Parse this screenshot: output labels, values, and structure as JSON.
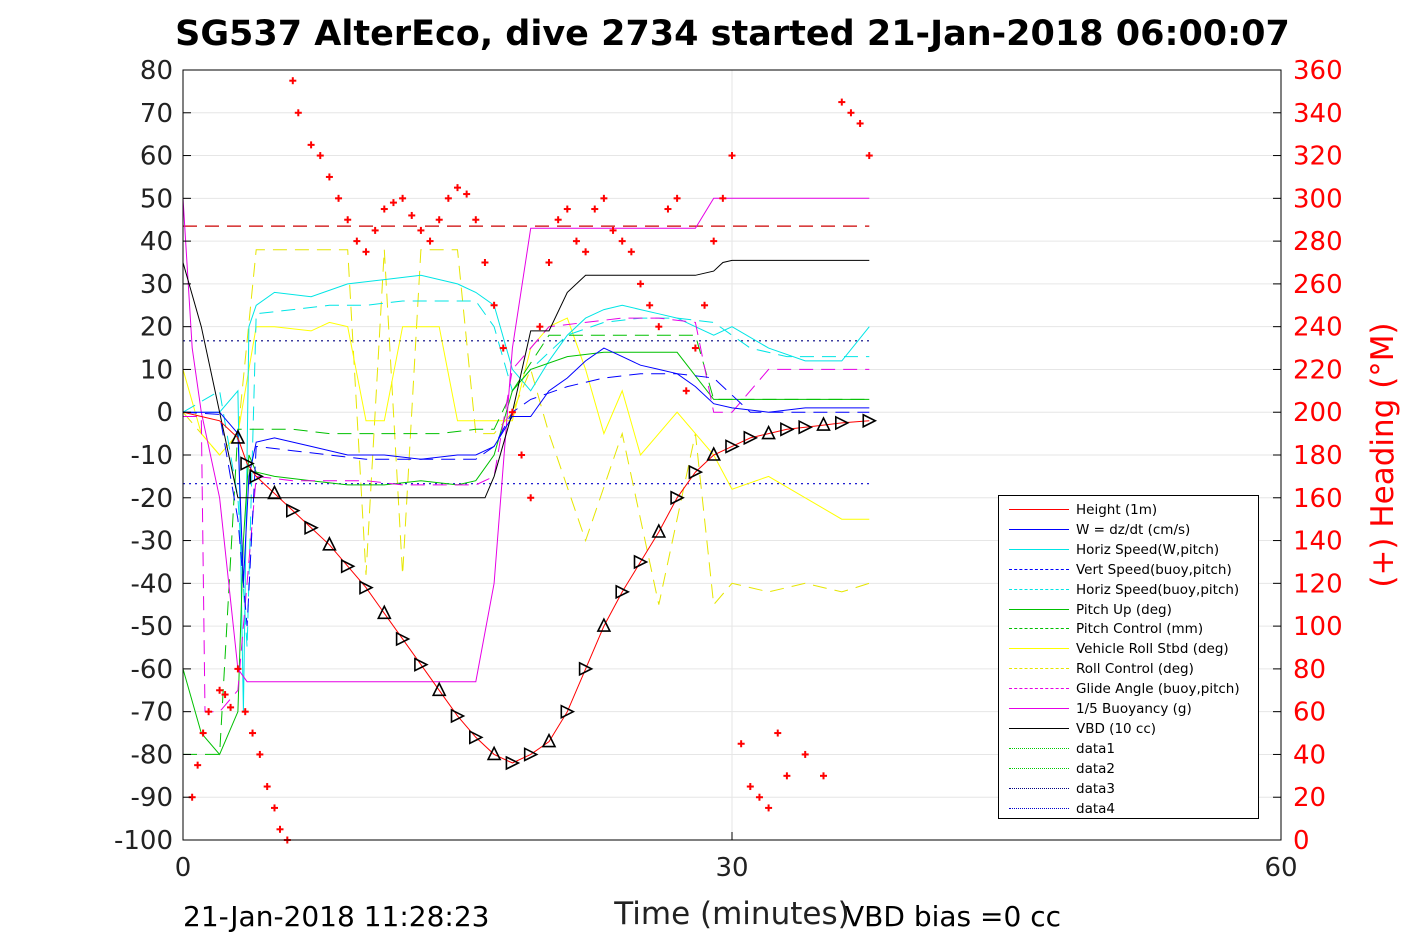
{
  "title": "SG537 AlterEco, dive 2734 started 21-Jan-2018 06:00:07",
  "footer": {
    "timestamp": "21-Jan-2018 11:28:23",
    "vbd_bias": "VBD bias =0 cc"
  },
  "chart_data": {
    "type": "line",
    "xlabel": "Time (minutes)",
    "ylabel_right": "(+) Heading (°M)",
    "xlim": [
      0,
      60
    ],
    "ylim_left": [
      -100,
      80
    ],
    "ylim_right": [
      0,
      360
    ],
    "xticks": [
      0,
      30,
      60
    ],
    "yticks_left": [
      80,
      70,
      60,
      50,
      40,
      30,
      20,
      10,
      0,
      -10,
      -20,
      -30,
      -40,
      -50,
      -60,
      -70,
      -80,
      -90,
      -100
    ],
    "yticks_right": [
      360,
      340,
      320,
      300,
      280,
      260,
      240,
      220,
      200,
      180,
      160,
      140,
      120,
      100,
      80,
      60,
      40,
      20,
      0
    ],
    "grid": true,
    "legend_position": "bottom-right",
    "colors": {
      "height": "#ff0000",
      "w": "#0000ff",
      "horiz_w": "#00e5e5",
      "vert_buoy": "#0000ff",
      "horiz_buoy": "#00e5e5",
      "pitch": "#00c000",
      "pitch_ctrl": "#00c000",
      "roll": "#ffff00",
      "roll_ctrl": "#e6e600",
      "glide": "#e600e6",
      "buoyancy": "#e600e6",
      "vbd": "#000000",
      "data1": "#00cc00",
      "data2": "#00cc00",
      "data3": "#000080",
      "data4": "#0000cc",
      "heading": "#ff0000"
    },
    "legend": [
      {
        "label": "Height (1m)",
        "color": "#ff0000",
        "style": "solid"
      },
      {
        "label": "W = dz/dt (cm/s)",
        "color": "#0000ff",
        "style": "solid"
      },
      {
        "label": "Horiz Speed(W,pitch)",
        "color": "#00e5e5",
        "style": "solid"
      },
      {
        "label": "Vert Speed(buoy,pitch)",
        "color": "#0000ff",
        "style": "dashed"
      },
      {
        "label": "Horiz Speed(buoy,pitch)",
        "color": "#00e5e5",
        "style": "dashed"
      },
      {
        "label": "Pitch Up (deg)",
        "color": "#00c000",
        "style": "solid"
      },
      {
        "label": "Pitch Control (mm)",
        "color": "#00c000",
        "style": "dashed"
      },
      {
        "label": "Vehicle Roll Stbd (deg)",
        "color": "#ffff00",
        "style": "solid"
      },
      {
        "label": "Roll Control (deg)",
        "color": "#e6e600",
        "style": "dashed"
      },
      {
        "label": "Glide Angle (buoy,pitch)",
        "color": "#e600e6",
        "style": "dashed"
      },
      {
        "label": "1/5 Buoyancy (g)",
        "color": "#e600e6",
        "style": "solid"
      },
      {
        "label": "VBD (10 cc)",
        "color": "#000000",
        "style": "solid"
      },
      {
        "label": "data1",
        "color": "#00cc00",
        "style": "dotted"
      },
      {
        "label": "data2",
        "color": "#00cc00",
        "style": "dotted"
      },
      {
        "label": "data3",
        "color": "#000080",
        "style": "dotted"
      },
      {
        "label": "data4",
        "color": "#0000cc",
        "style": "dotted"
      }
    ],
    "series": {
      "height": {
        "x": [
          0,
          1,
          2,
          3,
          3.5,
          4,
          5,
          6,
          7,
          8,
          9,
          10,
          11,
          12,
          13,
          14,
          15,
          16,
          17,
          18,
          19,
          20,
          21,
          22,
          23,
          24,
          25,
          26,
          27,
          28,
          29,
          30,
          31,
          32,
          33,
          34,
          35,
          36,
          37.5
        ],
        "y": [
          0,
          -1,
          -2,
          -6,
          -12,
          -15,
          -19,
          -23,
          -27,
          -31,
          -36,
          -41,
          -47,
          -53,
          -59,
          -65,
          -71,
          -76,
          -80,
          -82,
          -80,
          -77,
          -70,
          -60,
          -50,
          -42,
          -35,
          -28,
          -20,
          -14,
          -10,
          -8,
          -6,
          -5,
          -4,
          -3.5,
          -3,
          -2.5,
          -2
        ]
      },
      "w": {
        "x": [
          0,
          2,
          3,
          3.3,
          3.6,
          4,
          5,
          7,
          9,
          11,
          13,
          15,
          16,
          17,
          18,
          19,
          20,
          21,
          22,
          23,
          24,
          25,
          26,
          27,
          28,
          29,
          30,
          32,
          34,
          36,
          37.5
        ],
        "y": [
          0,
          0,
          -5,
          -40,
          -15,
          -7,
          -6,
          -8,
          -10,
          -10,
          -11,
          -10,
          -10,
          -8,
          -1,
          -1,
          5,
          8,
          12,
          15,
          13,
          11,
          10,
          9,
          6,
          2,
          1,
          0,
          1,
          1,
          1
        ]
      },
      "horiz_w": {
        "x": [
          0,
          2,
          3,
          3.3,
          3.6,
          4,
          5,
          7,
          9,
          11,
          13,
          15,
          16,
          17,
          18,
          19,
          20,
          21,
          22,
          23,
          24,
          25,
          26,
          27,
          28,
          29,
          30,
          32,
          34,
          36,
          37.5
        ],
        "y": [
          0,
          0,
          5,
          -70,
          20,
          25,
          28,
          27,
          30,
          31,
          32,
          30,
          28,
          25,
          10,
          5,
          12,
          18,
          22,
          24,
          25,
          24,
          23,
          22,
          20,
          18,
          20,
          15,
          12,
          12,
          20
        ]
      },
      "vert_buoy": {
        "x": [
          0,
          2,
          3,
          3.5,
          4,
          6,
          8,
          10,
          12,
          14,
          16,
          17,
          18,
          19,
          21,
          23,
          25,
          27,
          29,
          31,
          33,
          35,
          37.5
        ],
        "y": [
          0,
          -0.5,
          -25,
          -50,
          -8,
          -9,
          -10,
          -11,
          -11,
          -11,
          -11,
          -8,
          0,
          3,
          6,
          8,
          9,
          9,
          8,
          0,
          0,
          0,
          0
        ]
      },
      "horiz_buoy": {
        "x": [
          0,
          2,
          3,
          3.5,
          4,
          6,
          8,
          10,
          12,
          14,
          16,
          17,
          18,
          19,
          21,
          23,
          25,
          27,
          29,
          31,
          33,
          35,
          37.5
        ],
        "y": [
          0,
          5,
          -20,
          -55,
          23,
          24,
          25,
          25,
          26,
          26,
          26,
          20,
          5,
          10,
          18,
          21,
          22,
          22,
          21,
          15,
          13,
          13,
          13
        ]
      },
      "pitch": {
        "x": [
          0,
          1,
          2,
          3,
          3.3,
          3.6,
          4,
          5,
          7,
          9,
          11,
          13,
          15,
          16,
          17,
          18,
          19,
          21,
          23,
          25,
          27,
          29,
          31,
          33,
          35,
          37.5
        ],
        "y": [
          -60,
          -75,
          -80,
          -70,
          -30,
          -10,
          -14,
          -15,
          -16,
          -17,
          -17,
          -16,
          -17,
          -16,
          -10,
          5,
          10,
          13,
          14,
          14,
          14,
          3,
          3,
          3,
          3,
          3
        ]
      },
      "pitch_ctrl": {
        "x": [
          0,
          2,
          3,
          4,
          6,
          8,
          10,
          12,
          14,
          16,
          17,
          18,
          20,
          22,
          24,
          26,
          28,
          29,
          30,
          33,
          35,
          37.5
        ],
        "y": [
          -80,
          -80,
          -4,
          -4,
          -4,
          -5,
          -5,
          -5,
          -5,
          -4,
          -4,
          5,
          18,
          18,
          18,
          18,
          18,
          3,
          3,
          3,
          3,
          3
        ]
      },
      "roll": {
        "x": [
          0,
          1,
          2,
          3,
          4,
          5,
          7,
          8,
          9,
          10,
          11,
          12,
          13,
          14,
          15,
          16,
          17,
          18,
          19,
          20,
          21,
          22,
          23,
          24,
          25,
          26,
          27,
          28,
          29,
          30,
          32,
          34,
          36,
          37.5
        ],
        "y": [
          10,
          -5,
          -10,
          -5,
          20,
          20,
          19,
          21,
          20,
          -2,
          -2,
          20,
          20,
          20,
          -2,
          -2,
          -2,
          -2,
          15,
          20,
          22,
          10,
          -5,
          5,
          -10,
          -5,
          0,
          -5,
          -10,
          -18,
          -15,
          -20,
          -25,
          -25
        ]
      },
      "roll_ctrl": {
        "x": [
          0,
          1,
          2,
          3,
          4,
          5,
          7,
          9,
          10,
          11,
          12,
          13,
          14,
          15,
          16,
          17,
          18,
          19,
          20,
          22,
          24,
          26,
          28,
          29,
          30,
          32,
          34,
          36,
          37.5
        ],
        "y": [
          0,
          -5,
          -10,
          -5,
          38,
          38,
          38,
          38,
          -38,
          38,
          -38,
          38,
          38,
          38,
          -5,
          -5,
          0,
          10,
          -5,
          -30,
          -5,
          -45,
          -5,
          -45,
          -40,
          -42,
          -40,
          -42,
          -40
        ]
      },
      "glide": {
        "x": [
          0,
          1,
          1.2,
          1.4,
          2,
          3,
          4,
          6,
          8,
          10,
          12,
          14,
          16,
          17,
          18,
          20,
          22,
          24,
          26,
          28,
          29,
          30,
          32,
          34,
          36,
          37.5
        ],
        "y": [
          -1,
          -1,
          -70,
          -70,
          -70,
          -65,
          -15,
          -16,
          -16,
          -16,
          -17,
          -17,
          -17,
          -15,
          10,
          20,
          21,
          22,
          22,
          21,
          0,
          0,
          10,
          10,
          10,
          10
        ]
      },
      "buoyancy": {
        "x": [
          0,
          0.5,
          1,
          2,
          3,
          3.5,
          4,
          6,
          8,
          10,
          12,
          14,
          15,
          16,
          17,
          18,
          19,
          20,
          21,
          22,
          24,
          26,
          28,
          29,
          30,
          32,
          34,
          36,
          37.5
        ],
        "y": [
          50,
          15,
          0,
          -20,
          -60,
          -63,
          -63,
          -63,
          -63,
          -63,
          -63,
          -63,
          -63,
          -63,
          -40,
          15,
          43,
          43,
          43,
          43,
          43,
          43,
          43,
          50,
          50,
          50,
          50,
          50,
          50
        ]
      },
      "vbd": {
        "x": [
          0,
          1,
          2,
          3,
          3.5,
          4,
          8,
          12,
          16,
          16.5,
          17,
          18,
          19,
          20,
          21,
          22,
          24,
          26,
          28,
          29,
          29.5,
          30,
          32,
          34,
          36,
          37.5
        ],
        "y": [
          35,
          20,
          0,
          -20,
          -20,
          -20,
          -20,
          -20,
          -20,
          -20,
          -15,
          0,
          19,
          19,
          28,
          32,
          32,
          32,
          32,
          33,
          35,
          35.5,
          35.5,
          35.5,
          35.5,
          35.5
        ]
      },
      "data3": {
        "x": [
          0,
          37.5
        ],
        "y": [
          16.7,
          16.7
        ]
      },
      "data4": {
        "x": [
          0,
          37.5
        ],
        "y": [
          -16.7,
          -16.7
        ]
      },
      "ref_dashed": {
        "x": [
          0,
          37.5
        ],
        "y": [
          43.5,
          43.5
        ]
      },
      "heading": {
        "x": [
          0.5,
          0.8,
          1.1,
          1.4,
          2,
          2.3,
          2.6,
          3,
          3.4,
          3.8,
          4.2,
          4.6,
          5,
          5.3,
          5.7,
          6,
          6.3,
          7,
          7.5,
          8,
          8.5,
          9,
          9.5,
          10,
          10.5,
          11,
          11.5,
          12,
          12.5,
          13,
          13.5,
          14,
          14.5,
          15,
          15.5,
          16,
          16.5,
          17,
          17.5,
          18,
          18.5,
          19,
          19.5,
          20,
          20.5,
          21,
          21.5,
          22,
          22.5,
          23,
          23.5,
          24,
          24.5,
          25,
          25.5,
          26,
          26.5,
          27,
          27.5,
          28,
          28.5,
          29,
          29.5,
          30,
          30.5,
          31,
          31.5,
          32,
          32.5,
          33,
          34,
          35,
          36,
          36.5,
          37,
          37.5
        ],
        "y": [
          20,
          35,
          50,
          60,
          70,
          68,
          62,
          80,
          60,
          50,
          40,
          25,
          15,
          5,
          0,
          355,
          340,
          325,
          320,
          310,
          300,
          290,
          280,
          275,
          285,
          295,
          298,
          300,
          292,
          285,
          280,
          290,
          300,
          305,
          302,
          290,
          270,
          250,
          230,
          200,
          180,
          160,
          240,
          270,
          290,
          295,
          280,
          275,
          295,
          300,
          285,
          280,
          275,
          260,
          250,
          240,
          295,
          300,
          210,
          230,
          250,
          280,
          300,
          320,
          45,
          25,
          20,
          15,
          50,
          30,
          40,
          30,
          345,
          340,
          335,
          320
        ]
      }
    }
  }
}
